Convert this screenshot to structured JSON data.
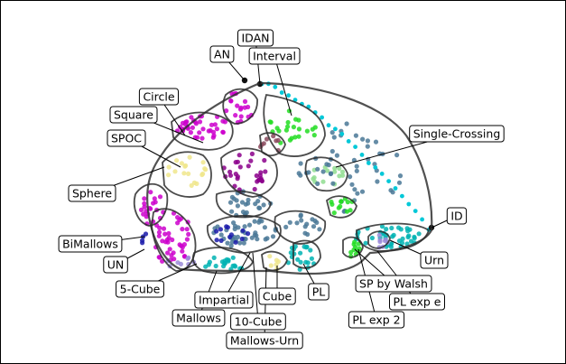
{
  "labels": {
    "idan": "IDAN",
    "an": "AN",
    "interval": "Interval",
    "circle": "Circle",
    "square": "Square",
    "spoc": "SPOC",
    "single_crossing": "Single-Crossing",
    "sphere": "Sphere",
    "id": "ID",
    "bimallows": "BiMallows",
    "un": "UN",
    "urn": "Urn",
    "five_cube": "5-Cube",
    "sp_by_walsh": "SP by Walsh",
    "pl": "PL",
    "cube": "Cube",
    "impartial": "Impartial",
    "pl_exp_e": "PL exp e",
    "mallows": "Mallows",
    "ten_cube": "10-Cube",
    "pl_exp_2": "PL exp 2",
    "mallows_urn": "Mallows-Urn"
  },
  "colors": {
    "magenta": "#cc00cc",
    "purple": "#8b008b",
    "teal": "#00b3b3",
    "steel_blue": "#4a7896",
    "green": "#22dd22",
    "light_green": "#90dd90",
    "yellow": "#f0e68c",
    "navy": "#1a1aaa",
    "dark_violet": "#6a0dad",
    "rosy": "#8b4a5e",
    "lavender": "#9b8bd8",
    "cyan": "#00c8d8"
  }
}
